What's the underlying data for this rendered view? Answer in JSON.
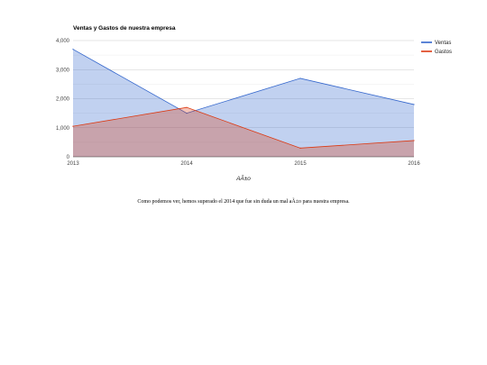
{
  "chart_data": {
    "type": "area",
    "title": "Ventas y Gastos de nuestra empresa",
    "xlabel": "AÃ±o",
    "ylabel": "",
    "categories": [
      "2013",
      "2014",
      "2015",
      "2016"
    ],
    "ylim": [
      0,
      4000
    ],
    "yticks": [
      0,
      1000,
      2000,
      3000,
      4000
    ],
    "ytick_labels": [
      "0",
      "1,000",
      "2,000",
      "3,000",
      "4,000"
    ],
    "grid": true,
    "legend_position": "top-right",
    "series": [
      {
        "name": "Ventas",
        "values": [
          3700,
          1500,
          2700,
          1800
        ],
        "color": "#3366cc"
      },
      {
        "name": "Gastos",
        "values": [
          1050,
          1700,
          300,
          560
        ],
        "color": "#dc3912"
      }
    ]
  },
  "caption": "Como podemos ver, hemos superado el 2014 que fue sin duda un mal aÃ±o para nuestra empresa."
}
